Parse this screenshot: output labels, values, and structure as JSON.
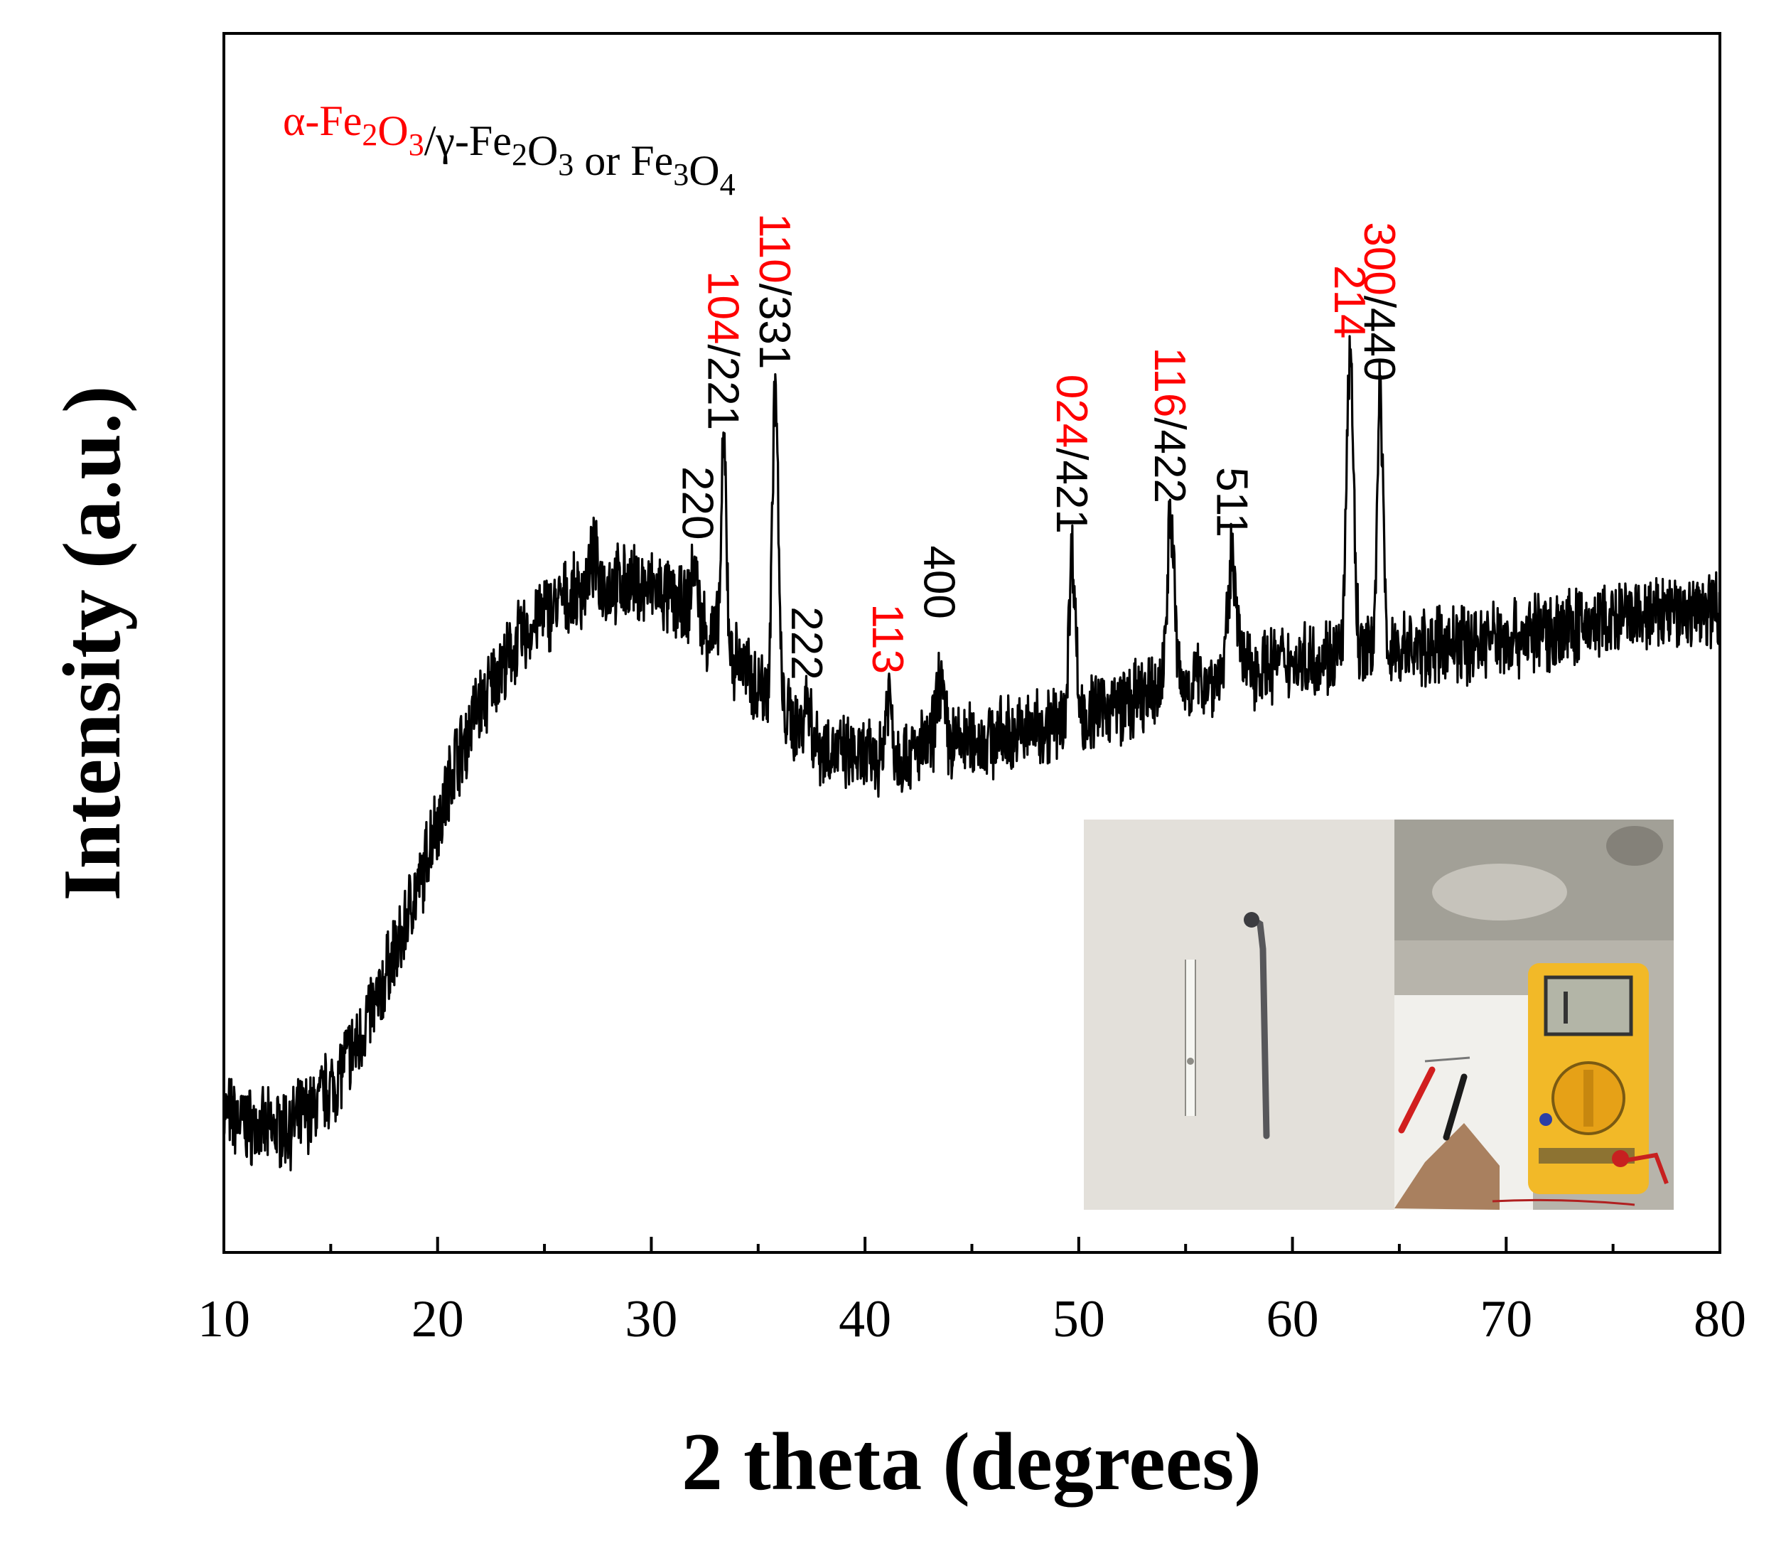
{
  "chart_data": {
    "type": "line",
    "title": "",
    "xlabel": "2 theta (degrees)",
    "ylabel": "Intensity (a.u.)",
    "xlim": [
      10,
      80
    ],
    "ylim": [
      0,
      100
    ],
    "xticks": [
      10,
      20,
      30,
      40,
      50,
      60,
      70,
      80
    ],
    "x_minor_step": 5,
    "y_tick_labels": false,
    "grid": false,
    "line_color": "#000000",
    "legend": {
      "placement": "top-left",
      "parts": [
        {
          "text": "α-Fe",
          "color": "#ff0000"
        },
        {
          "text": "2",
          "color": "#ff0000",
          "sub": true
        },
        {
          "text": "O",
          "color": "#ff0000"
        },
        {
          "text": "3",
          "color": "#ff0000",
          "sub": true
        },
        {
          "text": "/γ-Fe",
          "color": "#000000"
        },
        {
          "text": "2",
          "color": "#000000",
          "sub": true
        },
        {
          "text": "O",
          "color": "#000000"
        },
        {
          "text": "3",
          "color": "#000000",
          "sub": true
        },
        {
          "text": " or Fe",
          "color": "#000000"
        },
        {
          "text": "3",
          "color": "#000000",
          "sub": true
        },
        {
          "text": "O",
          "color": "#000000"
        },
        {
          "text": "4",
          "color": "#000000",
          "sub": true
        }
      ]
    },
    "baseline": [
      [
        10,
        11.5
      ],
      [
        11,
        10.5
      ],
      [
        12,
        10
      ],
      [
        13,
        10.3
      ],
      [
        14,
        11.5
      ],
      [
        15,
        13.5
      ],
      [
        16,
        16.5
      ],
      [
        17,
        20
      ],
      [
        18,
        24.5
      ],
      [
        19,
        29.5
      ],
      [
        20,
        35.5
      ],
      [
        21,
        41
      ],
      [
        22,
        45
      ],
      [
        23,
        48
      ],
      [
        24,
        50.5
      ],
      [
        25,
        52.5
      ],
      [
        26,
        53.5
      ],
      [
        27,
        54.5
      ],
      [
        28,
        54.8
      ],
      [
        29,
        54.8
      ],
      [
        30,
        54.5
      ],
      [
        31,
        53.5
      ],
      [
        32,
        52
      ],
      [
        33,
        50.5
      ],
      [
        34,
        48.5
      ],
      [
        35,
        46.5
      ],
      [
        36,
        44.5
      ],
      [
        37,
        43
      ],
      [
        38,
        41.5
      ],
      [
        39,
        40.8
      ],
      [
        40,
        40.5
      ],
      [
        41,
        40.5
      ],
      [
        42,
        40.8
      ],
      [
        43,
        41.5
      ],
      [
        44,
        41.8
      ],
      [
        45,
        42
      ],
      [
        46,
        42.2
      ],
      [
        47,
        42.5
      ],
      [
        48,
        43
      ],
      [
        49,
        43.5
      ],
      [
        50,
        44
      ],
      [
        52,
        45
      ],
      [
        54,
        46
      ],
      [
        56,
        47
      ],
      [
        58,
        48
      ],
      [
        60,
        48.5
      ],
      [
        62,
        49
      ],
      [
        64,
        49.3
      ],
      [
        66,
        49.5
      ],
      [
        68,
        50
      ],
      [
        70,
        50.5
      ],
      [
        72,
        51
      ],
      [
        74,
        51.5
      ],
      [
        76,
        52
      ],
      [
        78,
        52.5
      ],
      [
        80,
        53
      ]
    ],
    "noise_amplitude": 2.8,
    "peaks": [
      {
        "two_theta": 27.3,
        "intensity": 57.0,
        "width": 0.18
      },
      {
        "two_theta": 32.0,
        "intensity": 56.5,
        "width": 0.15
      },
      {
        "two_theta": 33.4,
        "intensity": 66.0,
        "width": 0.12
      },
      {
        "two_theta": 35.8,
        "intensity": 71.0,
        "width": 0.14
      },
      {
        "two_theta": 37.3,
        "intensity": 45.5,
        "width": 0.15
      },
      {
        "two_theta": 41.1,
        "intensity": 46.0,
        "width": 0.15
      },
      {
        "two_theta": 43.5,
        "intensity": 47.0,
        "width": 0.18
      },
      {
        "two_theta": 49.7,
        "intensity": 57.5,
        "width": 0.15
      },
      {
        "two_theta": 54.3,
        "intensity": 60.0,
        "width": 0.18
      },
      {
        "two_theta": 57.2,
        "intensity": 57.0,
        "width": 0.2
      },
      {
        "two_theta": 62.7,
        "intensity": 73.5,
        "width": 0.16
      },
      {
        "two_theta": 64.1,
        "intensity": 70.0,
        "width": 0.14
      }
    ],
    "annotations": [
      {
        "x": 32.2,
        "y": 57,
        "parts": [
          {
            "text": "220",
            "color": "#000000"
          }
        ]
      },
      {
        "x": 33.4,
        "y": 66,
        "parts": [
          {
            "text": "104",
            "color": "#ff0000"
          },
          {
            "text": "/221",
            "color": "#000000"
          }
        ]
      },
      {
        "x": 35.8,
        "y": 71,
        "parts": [
          {
            "text": "110",
            "color": "#ff0000"
          },
          {
            "text": "/331",
            "color": "#000000"
          }
        ]
      },
      {
        "x": 37.3,
        "y": 45.5,
        "parts": [
          {
            "text": "222",
            "color": "#000000"
          }
        ]
      },
      {
        "x": 41.1,
        "y": 46,
        "parts": [
          {
            "text": "113",
            "color": "#ff0000"
          }
        ]
      },
      {
        "x": 43.5,
        "y": 50.5,
        "parts": [
          {
            "text": "400",
            "color": "#000000"
          }
        ]
      },
      {
        "x": 49.7,
        "y": 57.5,
        "parts": [
          {
            "text": "024",
            "color": "#ff0000"
          },
          {
            "text": "/421",
            "color": "#000000"
          }
        ]
      },
      {
        "x": 54.3,
        "y": 60,
        "parts": [
          {
            "text": "116",
            "color": "#ff0000"
          },
          {
            "text": "/422",
            "color": "#000000"
          }
        ]
      },
      {
        "x": 57.2,
        "y": 57.2,
        "parts": [
          {
            "text": "511",
            "color": "#000000"
          }
        ]
      },
      {
        "x": 62.7,
        "y": 73.5,
        "parts": [
          {
            "text": "214",
            "color": "#ff0000"
          }
        ]
      },
      {
        "x": 64.1,
        "y": 70,
        "parts": [
          {
            "text": "300",
            "color": "#ff0000"
          },
          {
            "text": "/440",
            "color": "#000000"
          }
        ]
      }
    ],
    "inset": {
      "placement": "bottom-right",
      "panels": [
        {
          "content": "photo of two thin wires on white paper",
          "background": "#e6e4de"
        },
        {
          "content": "photo of a yellow digital multimeter measuring a wire sample",
          "background": "#b4b1a9"
        }
      ]
    }
  }
}
